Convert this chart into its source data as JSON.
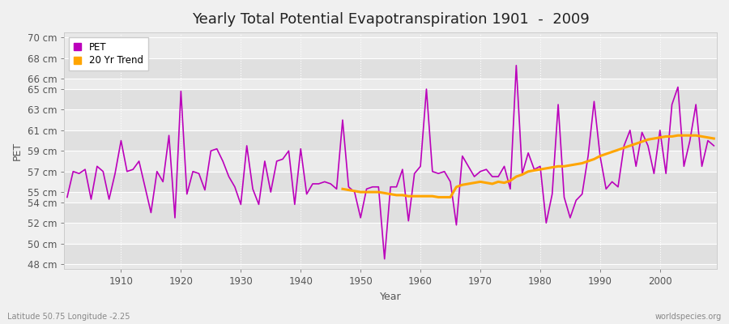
{
  "title": "Yearly Total Potential Evapotranspiration 1901  -  2009",
  "xlabel": "Year",
  "ylabel": "PET",
  "footer_left": "Latitude 50.75 Longitude -2.25",
  "footer_right": "worldspecies.org",
  "pet_color": "#bb00bb",
  "trend_color": "#FFA500",
  "bg_color": "#f0f0f0",
  "plot_bg_color": "#e8e8e8",
  "band_colors": [
    "#e0e0e0",
    "#ebebeb"
  ],
  "years": [
    1901,
    1902,
    1903,
    1904,
    1905,
    1906,
    1907,
    1908,
    1909,
    1910,
    1911,
    1912,
    1913,
    1914,
    1915,
    1916,
    1917,
    1918,
    1919,
    1920,
    1921,
    1922,
    1923,
    1924,
    1925,
    1926,
    1927,
    1928,
    1929,
    1930,
    1931,
    1932,
    1933,
    1934,
    1935,
    1936,
    1937,
    1938,
    1939,
    1940,
    1941,
    1942,
    1943,
    1944,
    1945,
    1946,
    1947,
    1948,
    1949,
    1950,
    1951,
    1952,
    1953,
    1954,
    1955,
    1956,
    1957,
    1958,
    1959,
    1960,
    1961,
    1962,
    1963,
    1964,
    1965,
    1966,
    1967,
    1968,
    1969,
    1970,
    1971,
    1972,
    1973,
    1974,
    1975,
    1976,
    1977,
    1978,
    1979,
    1980,
    1981,
    1982,
    1983,
    1984,
    1985,
    1986,
    1987,
    1988,
    1989,
    1990,
    1991,
    1992,
    1993,
    1994,
    1995,
    1996,
    1997,
    1998,
    1999,
    2000,
    2001,
    2002,
    2003,
    2004,
    2005,
    2006,
    2007,
    2008,
    2009
  ],
  "pet_values": [
    54.5,
    57.0,
    56.8,
    57.2,
    54.3,
    57.5,
    57.0,
    54.3,
    56.8,
    60.0,
    57.0,
    57.2,
    58.0,
    55.5,
    53.0,
    57.0,
    56.0,
    60.5,
    52.5,
    64.8,
    54.8,
    57.0,
    56.8,
    55.2,
    59.0,
    59.2,
    58.0,
    56.5,
    55.5,
    53.8,
    59.5,
    55.3,
    53.8,
    58.0,
    55.0,
    58.0,
    58.2,
    59.0,
    53.8,
    59.2,
    54.8,
    55.8,
    55.8,
    56.0,
    55.8,
    55.3,
    62.0,
    55.5,
    55.0,
    52.5,
    55.3,
    55.5,
    55.5,
    48.5,
    55.5,
    55.5,
    57.2,
    52.2,
    56.8,
    57.5,
    65.0,
    57.0,
    56.8,
    57.0,
    56.0,
    51.8,
    58.5,
    57.5,
    56.5,
    57.0,
    57.2,
    56.5,
    56.5,
    57.5,
    55.3,
    67.3,
    56.8,
    58.8,
    57.2,
    57.5,
    52.0,
    54.8,
    63.5,
    54.5,
    52.5,
    54.2,
    54.8,
    58.5,
    63.8,
    58.5,
    55.3,
    56.0,
    55.5,
    59.5,
    61.0,
    57.5,
    60.8,
    59.5,
    56.8,
    61.0,
    56.8,
    63.5,
    65.2,
    57.5,
    60.0,
    63.5,
    57.5,
    60.0,
    59.5
  ],
  "trend_years": [
    1947,
    1948,
    1949,
    1950,
    1951,
    1952,
    1953,
    1954,
    1955,
    1956,
    1957,
    1958,
    1959,
    1960,
    1961,
    1962,
    1963,
    1964,
    1965,
    1966,
    1967,
    1968,
    1969,
    1970,
    1971,
    1972,
    1973,
    1974,
    1975,
    1976,
    1977,
    1978,
    1979,
    1980,
    1981,
    1982,
    1983,
    1984,
    1985,
    1986,
    1987,
    1988,
    1989,
    1990,
    1991,
    1992,
    1993,
    1994,
    1995,
    1996,
    1997,
    1998,
    1999,
    2000,
    2001,
    2002,
    2003,
    2004,
    2005,
    2006,
    2007,
    2008,
    2009
  ],
  "trend_values": [
    55.3,
    55.2,
    55.1,
    55.0,
    55.0,
    55.0,
    55.0,
    54.9,
    54.8,
    54.7,
    54.7,
    54.6,
    54.6,
    54.6,
    54.6,
    54.6,
    54.5,
    54.5,
    54.5,
    55.5,
    55.7,
    55.8,
    55.9,
    56.0,
    55.9,
    55.8,
    56.0,
    55.9,
    56.1,
    56.5,
    56.7,
    57.0,
    57.1,
    57.2,
    57.3,
    57.4,
    57.5,
    57.5,
    57.6,
    57.7,
    57.8,
    58.0,
    58.2,
    58.5,
    58.7,
    58.9,
    59.1,
    59.3,
    59.5,
    59.7,
    59.9,
    60.1,
    60.2,
    60.3,
    60.4,
    60.4,
    60.5,
    60.5,
    60.5,
    60.5,
    60.4,
    60.3,
    60.2
  ],
  "ylim": [
    47.5,
    70.5
  ],
  "yticks": [
    48,
    50,
    52,
    54,
    55,
    57,
    59,
    61,
    63,
    65,
    66,
    68,
    70
  ],
  "xlim": [
    1900.5,
    2009.5
  ],
  "xticks": [
    1910,
    1920,
    1930,
    1940,
    1950,
    1960,
    1970,
    1980,
    1990,
    2000
  ],
  "grid_color": "#ffffff",
  "title_fontsize": 13,
  "label_fontsize": 9,
  "tick_fontsize": 8.5
}
